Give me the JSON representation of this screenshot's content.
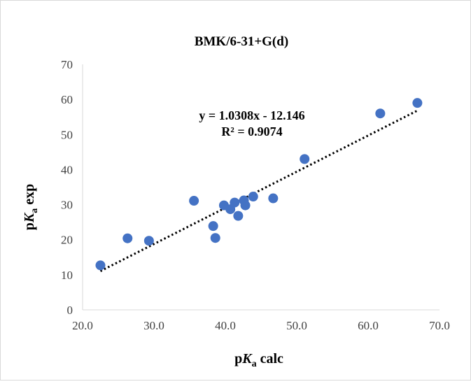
{
  "chart_data": {
    "type": "scatter",
    "title": "BMK/6-31+G(d)",
    "xlabel": {
      "pre": "p",
      "italic": "K",
      "sub": "a",
      "post": " calc"
    },
    "ylabel": {
      "pre": "p",
      "italic": "K",
      "sub": "a",
      "post": " exp"
    },
    "xlim": [
      20.0,
      70.0
    ],
    "ylim": [
      0,
      70
    ],
    "x_ticks": [
      "20.0",
      "30.0",
      "40.0",
      "50.0",
      "60.0",
      "70.0"
    ],
    "y_ticks": [
      "0",
      "10",
      "20",
      "30",
      "40",
      "50",
      "60",
      "70"
    ],
    "grid": false,
    "legend": "none",
    "marker_color": "#4472C4",
    "trendline_color": "#000000",
    "points": [
      {
        "x": 22.5,
        "y": 12.7
      },
      {
        "x": 26.3,
        "y": 20.4
      },
      {
        "x": 29.3,
        "y": 19.7
      },
      {
        "x": 35.6,
        "y": 31.1
      },
      {
        "x": 38.3,
        "y": 23.9
      },
      {
        "x": 38.6,
        "y": 20.5
      },
      {
        "x": 39.8,
        "y": 29.8
      },
      {
        "x": 40.7,
        "y": 28.7
      },
      {
        "x": 41.3,
        "y": 30.6
      },
      {
        "x": 41.8,
        "y": 26.8
      },
      {
        "x": 42.6,
        "y": 31.2
      },
      {
        "x": 42.8,
        "y": 29.8
      },
      {
        "x": 43.9,
        "y": 32.3
      },
      {
        "x": 46.7,
        "y": 31.8
      },
      {
        "x": 51.1,
        "y": 43.0
      },
      {
        "x": 61.7,
        "y": 56.0
      },
      {
        "x": 66.9,
        "y": 59.0
      }
    ],
    "trendline": {
      "slope": 1.0308,
      "intercept": -12.146,
      "x_range": [
        22.5,
        66.9
      ],
      "equation_label": "y = 1.0308x - 12.146",
      "r2_label": "R² = 0.9074"
    }
  }
}
